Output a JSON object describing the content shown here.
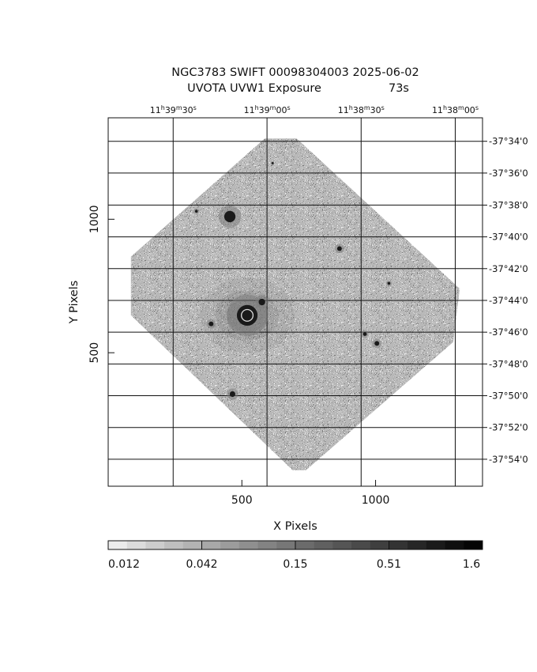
{
  "chart_data": {
    "type": "heatmap",
    "title": "NGC3783 SWIFT 00098304003 2025-06-02",
    "subtitle": "UVOTA UVW1 Exposure",
    "exposure": "73s",
    "xlabel": "X Pixels",
    "ylabel": "Y Pixels",
    "xlim": [
      0,
      1400
    ],
    "ylim": [
      0,
      1380
    ],
    "x_ticks": [
      500,
      1000
    ],
    "y_ticks": [
      500,
      1000
    ],
    "ra_ticks": [
      {
        "label": "11h39m30s",
        "h": "11",
        "m": "39",
        "s": "30",
        "x": 243
      },
      {
        "label": "11h39m00s",
        "h": "11",
        "m": "39",
        "s": "00",
        "x": 594
      },
      {
        "label": "11h38m30s",
        "h": "11",
        "m": "38",
        "s": "30",
        "x": 946
      },
      {
        "label": "11h38m00s",
        "h": "11",
        "m": "38",
        "s": "00",
        "x": 1298
      }
    ],
    "dec_ticks": [
      {
        "label": "-37°34'0",
        "y": 1292
      },
      {
        "label": "-37°36'0",
        "y": 1173
      },
      {
        "label": "-37°38'0",
        "y": 1053
      },
      {
        "label": "-37°40'0",
        "y": 934
      },
      {
        "label": "-37°42'0",
        "y": 815
      },
      {
        "label": "-37°44'0",
        "y": 696
      },
      {
        "label": "-37°46'0",
        "y": 577
      },
      {
        "label": "-37°48'0",
        "y": 458
      },
      {
        "label": "-37°50'0",
        "y": 339
      },
      {
        "label": "-37°52'0",
        "y": 220
      },
      {
        "label": "-37°54'0",
        "y": 101
      }
    ],
    "exposed_region": [
      [
        705,
        1302
      ],
      [
        1315,
        740
      ],
      [
        1290,
        540
      ],
      [
        740,
        60
      ],
      [
        690,
        60
      ],
      [
        85,
        640
      ],
      [
        85,
        860
      ],
      [
        585,
        1302
      ]
    ],
    "sources": [
      {
        "x": 455,
        "y": 1010,
        "r": 12
      },
      {
        "x": 520,
        "y": 640,
        "r": 22
      },
      {
        "x": 575,
        "y": 690,
        "r": 7
      },
      {
        "x": 385,
        "y": 608,
        "r": 5
      },
      {
        "x": 465,
        "y": 345,
        "r": 6
      },
      {
        "x": 865,
        "y": 890,
        "r": 5
      },
      {
        "x": 960,
        "y": 570,
        "r": 4
      },
      {
        "x": 1005,
        "y": 535,
        "r": 5
      },
      {
        "x": 1050,
        "y": 760,
        "r": 3
      },
      {
        "x": 330,
        "y": 1030,
        "r": 3
      },
      {
        "x": 615,
        "y": 1210,
        "r": 2
      }
    ],
    "colorbar": {
      "labels": [
        "0.012",
        "0.042",
        "0.15",
        "0.51",
        "1.6"
      ],
      "shades": [
        "#ececec",
        "#dcdcdc",
        "#cdcdcd",
        "#bfbfbf",
        "#b3b3b3",
        "#a8a8a8",
        "#9c9c9c",
        "#8f8f8f",
        "#838383",
        "#777777",
        "#6b6b6b",
        "#606060",
        "#555555",
        "#4a4a4a",
        "#3f3f3f",
        "#333333",
        "#262626",
        "#1a1a1a",
        "#0f0f0f",
        "#050505"
      ]
    },
    "grid": true,
    "image_color": "#9a9a9a",
    "source_color": "#1a1a1a"
  }
}
